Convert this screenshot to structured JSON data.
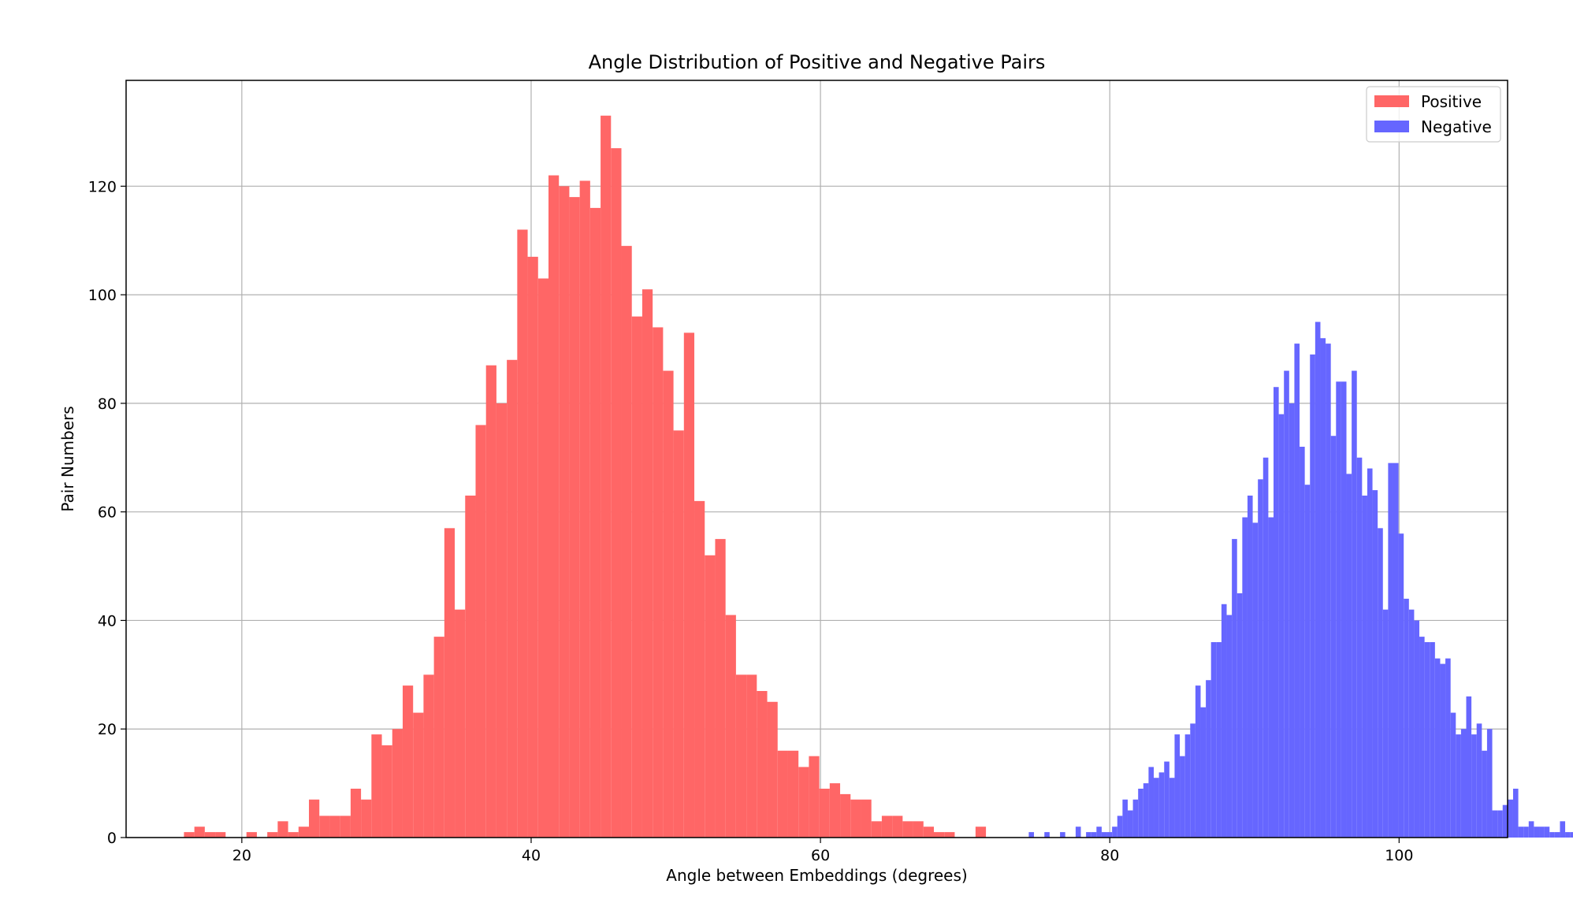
{
  "chart_data": {
    "type": "bar",
    "title": "Angle Distribution of Positive and Negative Pairs",
    "xlabel": "Angle between Embeddings (degrees)",
    "ylabel": "Pair Numbers",
    "xlim": [
      12,
      107.5
    ],
    "ylim": [
      0,
      139.5
    ],
    "xticks": [
      20,
      40,
      60,
      80,
      100
    ],
    "yticks": [
      0,
      20,
      40,
      60,
      80,
      100,
      120
    ],
    "grid": true,
    "legend_position": "top-right",
    "series": [
      {
        "name": "Positive",
        "color": "#ff6666",
        "x_start": 16.0,
        "bin_width": 0.72,
        "values": [
          1,
          2,
          1,
          1,
          0,
          0,
          1,
          0,
          1,
          3,
          1,
          2,
          7,
          4,
          4,
          4,
          9,
          7,
          19,
          17,
          20,
          28,
          23,
          30,
          37,
          57,
          42,
          63,
          76,
          87,
          80,
          88,
          112,
          107,
          103,
          122,
          120,
          118,
          121,
          116,
          133,
          127,
          109,
          96,
          101,
          94,
          86,
          75,
          93,
          62,
          52,
          55,
          41,
          30,
          30,
          27,
          25,
          16,
          16,
          13,
          15,
          9,
          10,
          8,
          7,
          7,
          3,
          4,
          4,
          3,
          3,
          2,
          1,
          1,
          0,
          0,
          2,
          0,
          0,
          0,
          0,
          0,
          0,
          0,
          0,
          0,
          0,
          0,
          0,
          0,
          0,
          0,
          0,
          0,
          0,
          0,
          0,
          1
        ]
      },
      {
        "name": "Negative",
        "color": "#6666ff",
        "x_start": 74.4,
        "bin_width": 0.36,
        "values": [
          1,
          0,
          0,
          1,
          0,
          0,
          1,
          0,
          0,
          2,
          0,
          1,
          1,
          2,
          1,
          1,
          2,
          4,
          7,
          5,
          7,
          9,
          10,
          13,
          11,
          12,
          14,
          11,
          19,
          15,
          19,
          21,
          28,
          24,
          29,
          36,
          36,
          43,
          41,
          55,
          45,
          59,
          63,
          58,
          66,
          70,
          59,
          83,
          78,
          86,
          80,
          91,
          72,
          65,
          89,
          95,
          92,
          91,
          74,
          84,
          84,
          67,
          86,
          70,
          63,
          68,
          64,
          57,
          42,
          69,
          69,
          56,
          44,
          42,
          40,
          37,
          36,
          36,
          33,
          32,
          33,
          23,
          19,
          20,
          26,
          19,
          21,
          16,
          20,
          5,
          5,
          6,
          7,
          9,
          2,
          2,
          3,
          2,
          2,
          2,
          1,
          1,
          3,
          1,
          1,
          1
        ]
      }
    ]
  }
}
